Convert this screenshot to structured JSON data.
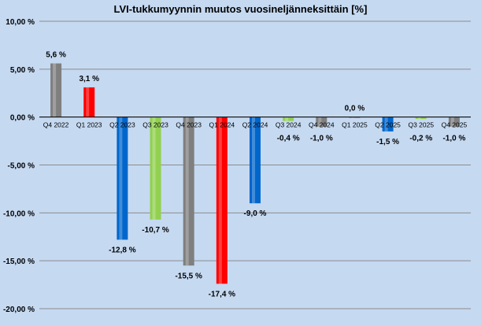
{
  "chart_data": {
    "type": "bar",
    "title": "LVI-tukkumyynnin muutos vuosineljänneksittäin [%]",
    "categories": [
      "Q4 2022",
      "Q1 2023",
      "Q2 2023",
      "Q3 2023",
      "Q4 2023",
      "Q1 2024",
      "Q2 2024",
      "Q3 2024",
      "Q4 2024",
      "Q1 2025",
      "Q2 2025",
      "Q3 2025",
      "Q4 2025"
    ],
    "values": [
      5.6,
      3.1,
      -12.8,
      -10.7,
      -15.5,
      -17.4,
      -9.0,
      -0.4,
      -1.0,
      0.0,
      -1.5,
      -0.2,
      -1.0
    ],
    "value_labels": [
      "5,6 %",
      "3,1 %",
      "-12,8 %",
      "-10,7 %",
      "-15,5 %",
      "-17,4 %",
      "-9,0 %",
      "-0,4 %",
      "-1,0 %",
      "0,0 %",
      "-1,5 %",
      "-0,2 %",
      "-1,0 %"
    ],
    "bar_colors": [
      "#7f7f7f",
      "#ff0000",
      "#0066cc",
      "#92d050",
      "#7f7f7f",
      "#ff0000",
      "#0066cc",
      "#92d050",
      "#7f7f7f",
      "#ff0000",
      "#0066cc",
      "#92d050",
      "#7f7f7f"
    ],
    "ylim": [
      -20,
      10
    ],
    "yticks": [
      10,
      5,
      0,
      -5,
      -10,
      -15,
      -20
    ],
    "ytick_labels": [
      "10,00 %",
      "5,00 %",
      "0,00 %",
      "-5,00 %",
      "-10,00 %",
      "-15,00 %",
      "-20,00 %"
    ],
    "grid": true,
    "legend": "none",
    "background_color": "#c5d9f1",
    "xlabel": "",
    "ylabel": ""
  }
}
